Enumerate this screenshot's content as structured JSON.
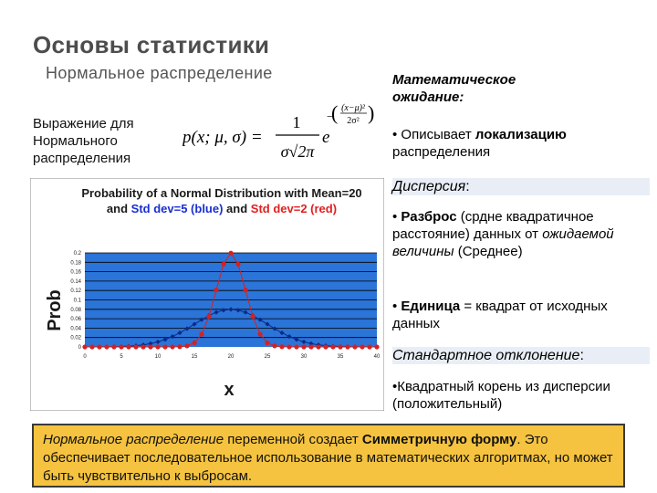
{
  "slide": {
    "title": "Основы статистики",
    "subtitle": "Нормальное распределение",
    "expression_label": "Выражение для Нормального распределения"
  },
  "formula": {
    "lhs": "p(x; μ, σ) =",
    "numerator": "1",
    "denominator": "σ√2π",
    "base": "e",
    "exp_num": "(x−μ)²",
    "exp_den": "2σ²",
    "exp_sign": "−"
  },
  "right": {
    "mean_head": "Математическое ожидание:",
    "mean_bullet_prefix": "• Описывает ",
    "mean_bullet_bold": "локализацию",
    "mean_bullet_suffix": " распределения",
    "disp_head": "Дисперсия",
    "disp_colon": ":",
    "disp_b1_prefix": "• ",
    "disp_b1_bold": "Разброс",
    "disp_b1_mid": " (срдне квадратичное расстояние) данных от ",
    "disp_b1_italic": "ожидаемой величины",
    "disp_b1_suffix": " (Среднее)",
    "disp_b2_prefix": "• ",
    "disp_b2_bold": "Единица",
    "disp_b2_suffix": " = квадрат от исходных данных",
    "std_head": "Стандартное отклонение",
    "std_colon": ":",
    "std_bullet": "•Квадратный корень из дисперсии (положительный)"
  },
  "bottom": {
    "p1": "Нормальное распределение",
    "p2": " переменной создает ",
    "p3": "Симметричную форму",
    "p4": ". Это обеспечивает последовательное использование в математических алгоритмах, но может быть чувствительно к выбросам."
  },
  "colors": {
    "chart_bg": "#2b74d8",
    "grid_line": "#000000",
    "blue_series": "#0b2a8a",
    "red_series": "#d8201e",
    "title_blue": "#1a2fd0",
    "title_red": "#e02020",
    "box_fill": "#f5c33f"
  },
  "chart_data": {
    "type": "line",
    "title_line1": "Probability of a Normal Distribution with Mean=20",
    "title_line2_prefix": "and ",
    "title_line2_blue": "Std dev=5 (blue)",
    "title_line2_mid": " and ",
    "title_line2_red": "Std dev=2 (red)",
    "xlabel": "x",
    "ylabel": "Prob",
    "xlim": [
      0,
      40
    ],
    "ylim": [
      0,
      0.2
    ],
    "xticks": [
      "0",
      "5",
      "10",
      "15",
      "20",
      "25",
      "30",
      "35",
      "40"
    ],
    "yticks": [
      "0",
      "0.02",
      "0.04",
      "0.06",
      "0.08",
      "0.1",
      "0.12",
      "0.14",
      "0.16",
      "0.18",
      "0.2"
    ],
    "series": [
      {
        "name": "Std dev=5 (blue)",
        "mean": 20,
        "std": 5,
        "x_start": 0,
        "x_end": 40,
        "step": 1
      },
      {
        "name": "Std dev=2 (red)",
        "mean": 20,
        "std": 2,
        "x_start": 0,
        "x_end": 40,
        "step": 1
      }
    ]
  }
}
